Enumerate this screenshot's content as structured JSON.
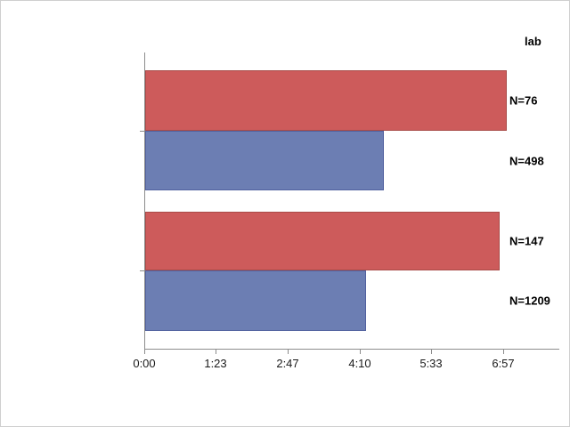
{
  "chart_data": {
    "type": "bar",
    "orientation": "horizontal",
    "title": "",
    "xlabel": "",
    "ylabel": "",
    "grid": false,
    "legend": "none",
    "right_column_header": "lab",
    "x_axis": {
      "format": "m:ss",
      "min_seconds": 0,
      "max_seconds": 482,
      "tick_labels": [
        "0:00",
        "1:23",
        "2:47",
        "4:10",
        "5:33",
        "6:57"
      ],
      "tick_seconds": [
        0,
        83,
        167,
        250,
        333,
        417
      ]
    },
    "bars": [
      {
        "group": 1,
        "series": "red",
        "value_time": "7:00",
        "value_seconds": 420,
        "n_label": "N=76"
      },
      {
        "group": 1,
        "series": "blue",
        "value_time": "4:37",
        "value_seconds": 277,
        "n_label": "N=498"
      },
      {
        "group": 2,
        "series": "red",
        "value_time": "6:52",
        "value_seconds": 412,
        "n_label": "N=147"
      },
      {
        "group": 2,
        "series": "blue",
        "value_time": "4:16",
        "value_seconds": 256,
        "n_label": "N=1209"
      }
    ]
  },
  "colors": {
    "bar_red_fill": "#cd5b5b",
    "bar_red_border": "#a94b48",
    "bar_blue_fill": "#6c7eb3",
    "bar_blue_border": "#51619f",
    "axis_line": "#8c8c8c",
    "tick_text": "#1a1a1a",
    "label_text": "#000000",
    "frame_border": "#cfcfcf",
    "background": "#ffffff"
  }
}
